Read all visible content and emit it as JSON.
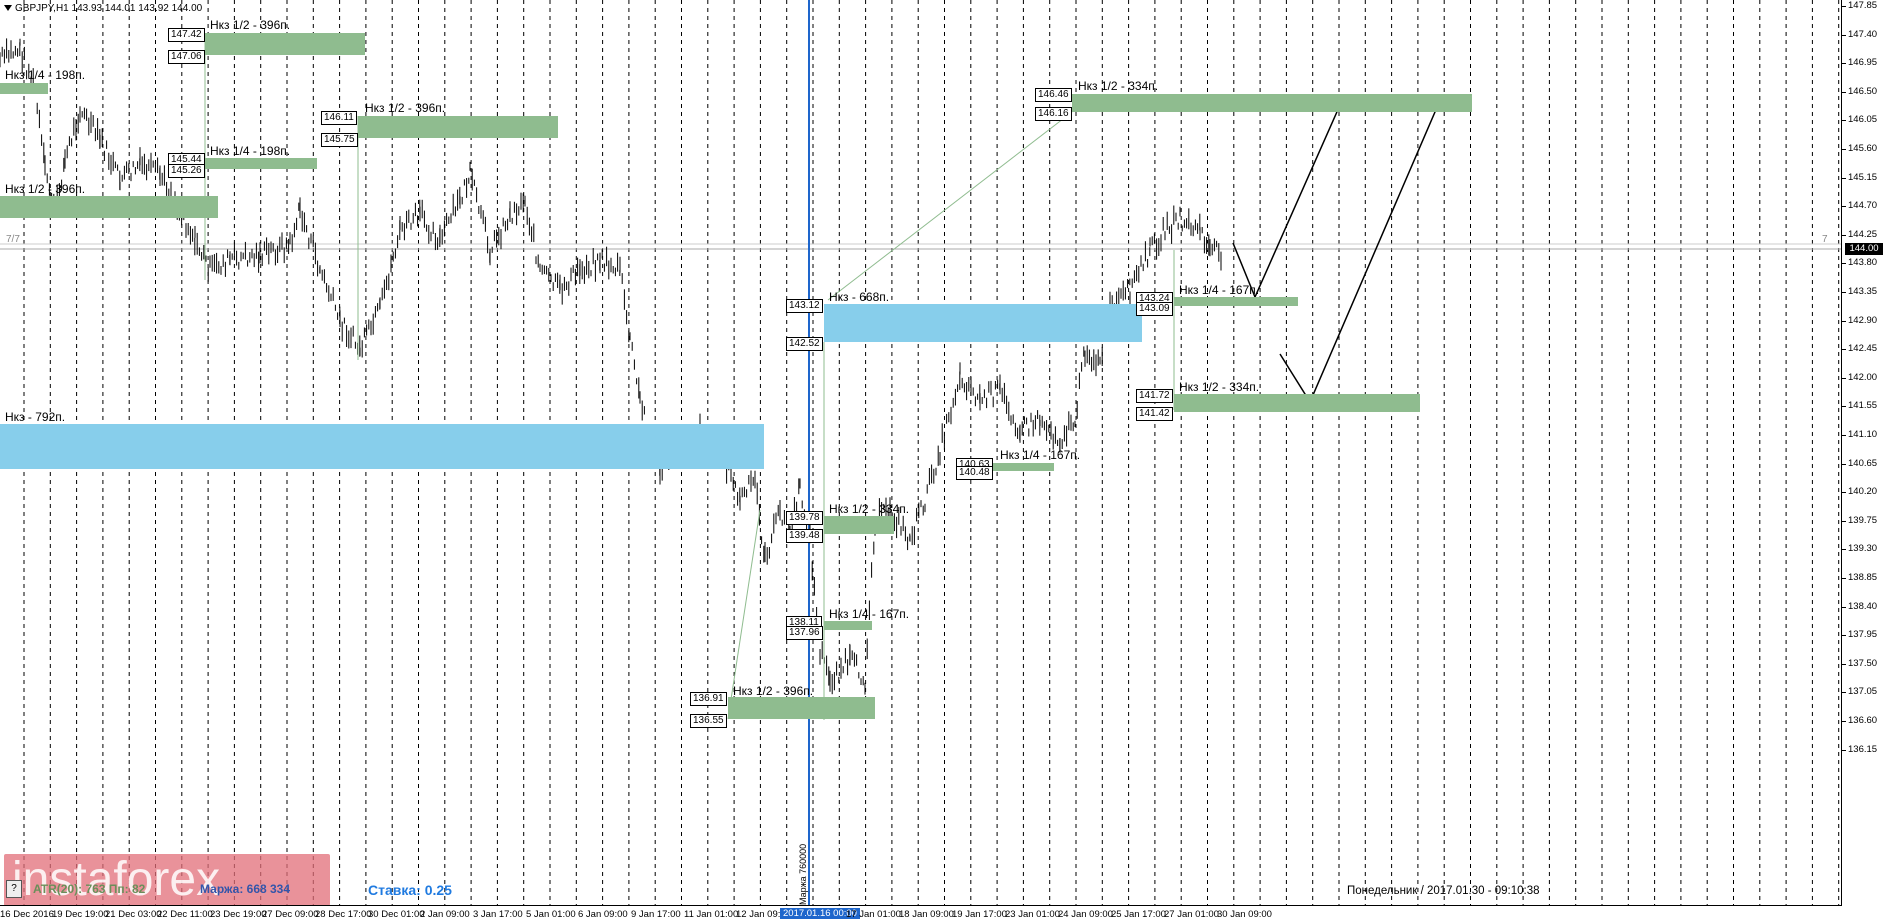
{
  "title": "GBPJPY,H1  143.93 144.01 143.92 144.00",
  "price_axis": [
    "147.85",
    "147.40",
    "146.95",
    "146.50",
    "146.05",
    "145.60",
    "145.15",
    "144.70",
    "144.25",
    "143.80",
    "143.35",
    "142.90",
    "142.45",
    "142.00",
    "141.55",
    "141.10",
    "140.65",
    "140.20",
    "139.75",
    "139.30",
    "138.85",
    "138.40",
    "137.95",
    "137.50",
    "137.05",
    "136.60",
    "136.15"
  ],
  "current_price": "144.00",
  "time_axis": [
    "16 Dec 2016",
    "19 Dec 19:00",
    "21 Dec 03:00",
    "22 Dec 11:00",
    "23 Dec 19:00",
    "27 Dec 09:00",
    "28 Dec 17:00",
    "30 Dec 01:00",
    "2 Jan 09:00",
    "3 Jan 17:00",
    "5 Jan 01:00",
    "6 Jan 09:00",
    "9 Jan 17:00",
    "11 Jan 01:00",
    "12 Jan 09:00",
    "2017.01.16 00:00",
    "17 Jan 01:00",
    "18 Jan 09:00",
    "19 Jan 17:00",
    "23 Jan 01:00",
    "24 Jan 09:00",
    "25 Jan 17:00",
    "27 Jan 01:00",
    "30 Jan 09:00"
  ],
  "zones": [
    {
      "label": "Нкз 1/2 - 396п.",
      "color": "#8fbc8f"
    },
    {
      "label": "Нкз 1/4 - 198п.",
      "color": "#8fbc8f"
    },
    {
      "label": "Нкз 1/2 - 396п.",
      "color": "#8fbc8f"
    },
    {
      "label": "Нкз 1/4 - 198п.",
      "color": "#8fbc8f"
    },
    {
      "label": "Нкз 1/2 - 396п.",
      "color": "#8fbc8f"
    },
    {
      "label": "Нкз - 792п.",
      "color": "#87ceeb"
    },
    {
      "label": "Нкз - 668п.",
      "color": "#87ceeb"
    },
    {
      "label": "Нкз 1/2 - 334п.",
      "color": "#8fbc8f"
    },
    {
      "label": "Нкз 1/4 - 167п.",
      "color": "#8fbc8f"
    },
    {
      "label": "Нкз 1/2 - 396п.",
      "color": "#8fbc8f"
    },
    {
      "label": "Нкз 1/4 - 167п.",
      "color": "#8fbc8f"
    },
    {
      "label": "Нкз 1/2 - 334п.",
      "color": "#8fbc8f"
    },
    {
      "label": "Нкз 1/4 - 167п.",
      "color": "#8fbc8f"
    },
    {
      "label": "Нкз 1/2 - 334п.",
      "color": "#8fbc8f"
    }
  ],
  "price_boxes": [
    "147.42",
    "147.06",
    "145.44",
    "145.26",
    "146.11",
    "145.75",
    "143.12",
    "142.52",
    "139.78",
    "139.48",
    "138.11",
    "137.96",
    "136.91",
    "136.55",
    "140.63",
    "140.48",
    "146.46",
    "146.16",
    "143.24",
    "143.09",
    "141.72",
    "141.42"
  ],
  "side_labels": {
    "left": "7/7",
    "right": "7"
  },
  "atr_text": "ATR(20): 763  Пп: 82",
  "marzha_text": "Маржа: 668  334",
  "stavka_text": "Ставка: 0.25",
  "status_text": "Понедельник  /  2017.01.30  -  09:10:38",
  "mark_text": "Маржа 760000",
  "help_label": "?",
  "watermark": "instaforex"
}
